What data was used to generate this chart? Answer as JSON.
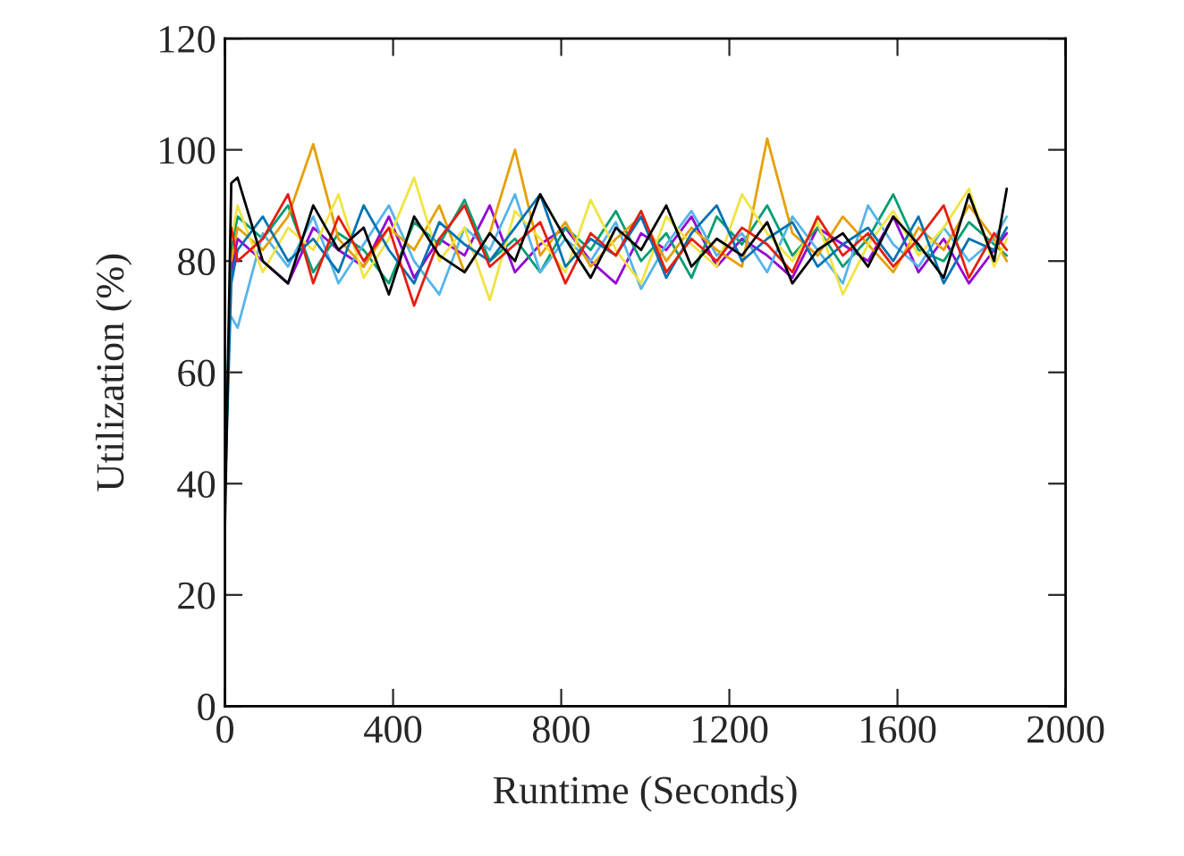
{
  "chart_data": {
    "type": "line",
    "xlabel": "Runtime (Seconds)",
    "ylabel": "Utilization (%)",
    "x": [
      0,
      15,
      30,
      90,
      150,
      210,
      270,
      330,
      390,
      450,
      510,
      570,
      630,
      690,
      750,
      810,
      870,
      930,
      990,
      1050,
      1110,
      1170,
      1230,
      1290,
      1350,
      1410,
      1470,
      1530,
      1590,
      1650,
      1710,
      1770,
      1830,
      1860
    ],
    "xlim": [
      0,
      2000
    ],
    "xticks": [
      0,
      400,
      800,
      1200,
      1600,
      2000
    ],
    "ylim": [
      0,
      120
    ],
    "yticks": [
      0,
      20,
      40,
      60,
      80,
      100,
      120
    ],
    "grid": false,
    "legend": false,
    "marker": "none",
    "line_style": "solid",
    "series": [
      {
        "color": "#9400d3",
        "values": [
          null,
          78,
          84,
          80,
          76,
          86,
          82,
          79,
          88,
          77,
          84,
          81,
          90,
          78,
          83,
          86,
          80,
          76,
          85,
          82,
          88,
          79,
          84,
          81,
          77,
          86,
          83,
          80,
          88,
          78,
          84,
          76,
          82,
          85
        ]
      },
      {
        "color": "#009e73",
        "values": [
          40,
          82,
          88,
          84,
          90,
          78,
          85,
          82,
          76,
          87,
          83,
          91,
          80,
          84,
          78,
          86,
          82,
          89,
          80,
          85,
          77,
          88,
          83,
          90,
          81,
          86,
          79,
          84,
          92,
          82,
          80,
          87,
          83,
          81
        ]
      },
      {
        "color": "#56b4e9",
        "values": [
          null,
          70,
          68,
          85,
          79,
          88,
          76,
          83,
          90,
          80,
          74,
          86,
          82,
          92,
          78,
          84,
          80,
          87,
          75,
          83,
          89,
          81,
          85,
          78,
          88,
          82,
          76,
          90,
          83,
          79,
          86,
          80,
          84,
          88
        ]
      },
      {
        "color": "#e69f00",
        "values": [
          null,
          80,
          86,
          82,
          88,
          101,
          84,
          79,
          86,
          82,
          90,
          78,
          85,
          100,
          81,
          87,
          79,
          84,
          88,
          80,
          86,
          82,
          79,
          102,
          85,
          81,
          88,
          83,
          78,
          86,
          82,
          90,
          84,
          80
        ]
      },
      {
        "color": "#f0e442",
        "values": [
          null,
          84,
          90,
          78,
          86,
          82,
          92,
          77,
          84,
          95,
          80,
          86,
          73,
          89,
          84,
          78,
          91,
          82,
          76,
          88,
          83,
          79,
          92,
          85,
          80,
          87,
          74,
          83,
          89,
          81,
          86,
          93,
          79,
          84
        ]
      },
      {
        "color": "#0072b2",
        "values": [
          38,
          76,
          82,
          88,
          80,
          84,
          78,
          90,
          82,
          76,
          87,
          83,
          80,
          86,
          92,
          79,
          84,
          81,
          88,
          77,
          85,
          90,
          80,
          84,
          87,
          79,
          83,
          86,
          80,
          88,
          76,
          84,
          82,
          86
        ]
      },
      {
        "color": "#e51e10",
        "values": [
          null,
          86,
          80,
          84,
          92,
          76,
          88,
          80,
          86,
          72,
          84,
          90,
          79,
          83,
          87,
          76,
          85,
          81,
          89,
          78,
          84,
          80,
          86,
          83,
          78,
          88,
          81,
          85,
          79,
          84,
          90,
          77,
          85,
          82
        ]
      },
      {
        "color": "#000000",
        "values": [
          32,
          94,
          95,
          80,
          76,
          90,
          82,
          86,
          74,
          88,
          81,
          78,
          85,
          80,
          92,
          84,
          77,
          86,
          82,
          90,
          79,
          84,
          81,
          87,
          76,
          82,
          85,
          79,
          88,
          83,
          77,
          92,
          80,
          93
        ]
      }
    ]
  }
}
